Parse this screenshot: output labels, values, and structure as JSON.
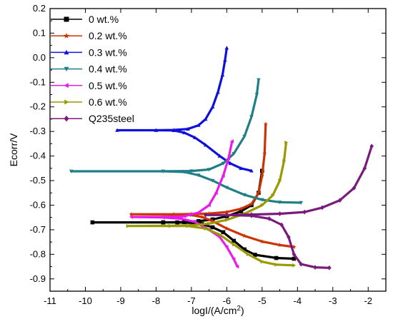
{
  "chart_data": {
    "type": "line",
    "title": "",
    "xlabel": "logI/(A/cm",
    "xlabel_sup": "2",
    "xlabel_close": ")",
    "ylabel": "Ecorr/V",
    "xlim": [
      -11,
      -1.5
    ],
    "ylim": [
      -0.95,
      0.2
    ],
    "xticks": [
      "-11",
      "-10",
      "-9",
      "-8",
      "-7",
      "-6",
      "-5",
      "-4",
      "-3",
      "-2"
    ],
    "yticks": [
      "0.2",
      "0.1",
      "0.0",
      "-0.1",
      "-0.2",
      "-0.3",
      "-0.4",
      "-0.5",
      "-0.6",
      "-0.7",
      "-0.8",
      "-0.9"
    ],
    "legend_position": "top-left",
    "series": [
      {
        "name": "0 wt.%",
        "color": "#000000",
        "marker": "square",
        "points": [
          [
            -4.1,
            -0.818
          ],
          [
            -4.6,
            -0.815
          ],
          [
            -5.2,
            -0.802
          ],
          [
            -5.5,
            -0.78
          ],
          [
            -5.8,
            -0.745
          ],
          [
            -6.1,
            -0.71
          ],
          [
            -6.4,
            -0.69
          ],
          [
            -6.7,
            -0.677
          ],
          [
            -7.0,
            -0.672
          ],
          [
            -7.4,
            -0.67
          ],
          [
            -7.8,
            -0.67
          ],
          [
            -9.8,
            -0.67
          ],
          [
            -7.8,
            -0.67
          ],
          [
            -7.2,
            -0.669
          ],
          [
            -6.8,
            -0.665
          ],
          [
            -6.4,
            -0.658
          ],
          [
            -6.0,
            -0.645
          ],
          [
            -5.6,
            -0.625
          ],
          [
            -5.3,
            -0.6
          ],
          [
            -5.1,
            -0.55
          ],
          [
            -5.0,
            -0.46
          ]
        ]
      },
      {
        "name": "0.2 wt.%",
        "color": "#cc3300",
        "marker": "star",
        "points": [
          [
            -4.1,
            -0.77
          ],
          [
            -4.5,
            -0.762
          ],
          [
            -5.0,
            -0.748
          ],
          [
            -5.5,
            -0.725
          ],
          [
            -6.0,
            -0.695
          ],
          [
            -6.4,
            -0.665
          ],
          [
            -6.7,
            -0.648
          ],
          [
            -7.0,
            -0.64
          ],
          [
            -7.5,
            -0.638
          ],
          [
            -8.7,
            -0.637
          ],
          [
            -7.5,
            -0.637
          ],
          [
            -7.0,
            -0.636
          ],
          [
            -6.5,
            -0.634
          ],
          [
            -6.0,
            -0.628
          ],
          [
            -5.6,
            -0.615
          ],
          [
            -5.3,
            -0.595
          ],
          [
            -5.1,
            -0.55
          ],
          [
            -5.0,
            -0.48
          ],
          [
            -4.93,
            -0.39
          ],
          [
            -4.9,
            -0.27
          ]
        ]
      },
      {
        "name": "0.3 wt.%",
        "color": "#1010dd",
        "marker": "triangle-up",
        "points": [
          [
            -5.3,
            -0.46
          ],
          [
            -5.6,
            -0.45
          ],
          [
            -5.9,
            -0.43
          ],
          [
            -6.2,
            -0.4
          ],
          [
            -6.6,
            -0.355
          ],
          [
            -6.9,
            -0.325
          ],
          [
            -7.2,
            -0.305
          ],
          [
            -7.5,
            -0.296
          ],
          [
            -8.0,
            -0.295
          ],
          [
            -9.1,
            -0.295
          ],
          [
            -8.0,
            -0.295
          ],
          [
            -7.5,
            -0.294
          ],
          [
            -7.1,
            -0.29
          ],
          [
            -6.8,
            -0.275
          ],
          [
            -6.6,
            -0.25
          ],
          [
            -6.4,
            -0.2
          ],
          [
            -6.25,
            -0.14
          ],
          [
            -6.12,
            -0.07
          ],
          [
            -6.05,
            -0.01
          ],
          [
            -6.0,
            0.04
          ]
        ]
      },
      {
        "name": "0.4 wt.%",
        "color": "#1e7f86",
        "marker": "triangle-down",
        "points": [
          [
            -3.9,
            -0.59
          ],
          [
            -4.5,
            -0.588
          ],
          [
            -5.0,
            -0.578
          ],
          [
            -5.5,
            -0.558
          ],
          [
            -6.0,
            -0.528
          ],
          [
            -6.4,
            -0.5
          ],
          [
            -6.8,
            -0.478
          ],
          [
            -7.2,
            -0.465
          ],
          [
            -7.8,
            -0.462
          ],
          [
            -10.4,
            -0.462
          ],
          [
            -7.8,
            -0.462
          ],
          [
            -7.0,
            -0.461
          ],
          [
            -6.5,
            -0.455
          ],
          [
            -6.1,
            -0.43
          ],
          [
            -5.8,
            -0.39
          ],
          [
            -5.5,
            -0.32
          ],
          [
            -5.3,
            -0.24
          ],
          [
            -5.15,
            -0.15
          ],
          [
            -5.1,
            -0.09
          ]
        ]
      },
      {
        "name": "0.5 wt.%",
        "color": "#e81ce8",
        "marker": "triangle-left",
        "points": [
          [
            -5.7,
            -0.85
          ],
          [
            -5.8,
            -0.82
          ],
          [
            -6.0,
            -0.77
          ],
          [
            -6.2,
            -0.73
          ],
          [
            -6.5,
            -0.7
          ],
          [
            -6.9,
            -0.668
          ],
          [
            -7.3,
            -0.655
          ],
          [
            -7.8,
            -0.65
          ],
          [
            -8.7,
            -0.648
          ],
          [
            -7.8,
            -0.648
          ],
          [
            -7.2,
            -0.645
          ],
          [
            -6.8,
            -0.63
          ],
          [
            -6.5,
            -0.6
          ],
          [
            -6.3,
            -0.55
          ],
          [
            -6.1,
            -0.48
          ],
          [
            -5.95,
            -0.41
          ],
          [
            -5.85,
            -0.34
          ]
        ]
      },
      {
        "name": "0.6 wt.%",
        "color": "#999900",
        "marker": "triangle-right",
        "points": [
          [
            -4.1,
            -0.845
          ],
          [
            -4.6,
            -0.842
          ],
          [
            -5.0,
            -0.83
          ],
          [
            -5.4,
            -0.8
          ],
          [
            -5.8,
            -0.76
          ],
          [
            -6.2,
            -0.72
          ],
          [
            -6.6,
            -0.695
          ],
          [
            -7.1,
            -0.685
          ],
          [
            -7.6,
            -0.685
          ],
          [
            -8.8,
            -0.685
          ],
          [
            -7.6,
            -0.684
          ],
          [
            -7.0,
            -0.682
          ],
          [
            -6.5,
            -0.675
          ],
          [
            -6.0,
            -0.66
          ],
          [
            -5.5,
            -0.635
          ],
          [
            -5.0,
            -0.6
          ],
          [
            -4.7,
            -0.56
          ],
          [
            -4.5,
            -0.5
          ],
          [
            -4.38,
            -0.42
          ],
          [
            -4.32,
            -0.345
          ]
        ]
      },
      {
        "name": "Q235steel",
        "color": "#7a1a7a",
        "marker": "diamond",
        "points": [
          [
            -3.1,
            -0.855
          ],
          [
            -3.5,
            -0.853
          ],
          [
            -3.9,
            -0.84
          ],
          [
            -4.1,
            -0.8
          ],
          [
            -4.25,
            -0.73
          ],
          [
            -4.45,
            -0.68
          ],
          [
            -4.8,
            -0.655
          ],
          [
            -5.3,
            -0.643
          ],
          [
            -6.0,
            -0.64
          ],
          [
            -6.6,
            -0.64
          ],
          [
            -6.0,
            -0.64
          ],
          [
            -5.3,
            -0.638
          ],
          [
            -4.5,
            -0.635
          ],
          [
            -3.8,
            -0.628
          ],
          [
            -3.3,
            -0.61
          ],
          [
            -2.8,
            -0.58
          ],
          [
            -2.4,
            -0.53
          ],
          [
            -2.1,
            -0.45
          ],
          [
            -1.9,
            -0.36
          ]
        ]
      }
    ]
  }
}
